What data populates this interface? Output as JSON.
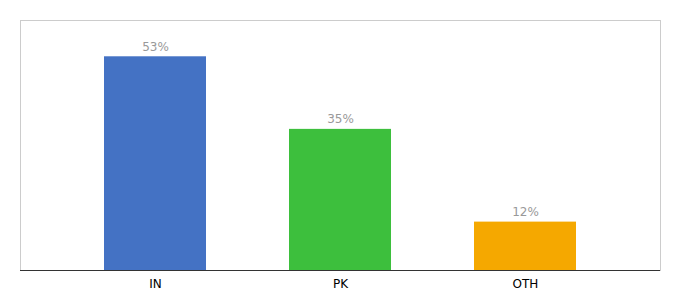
{
  "chart_data": {
    "type": "bar",
    "categories": [
      "IN",
      "PK",
      "OTH"
    ],
    "values": [
      53,
      35,
      12
    ],
    "value_labels": [
      "53%",
      "35%",
      "12%"
    ],
    "colors": [
      "#4472c4",
      "#3dbf3d",
      "#f5a800"
    ],
    "ylim": [
      0,
      62
    ],
    "data_labels": true,
    "tick_labels": "x",
    "grid": false
  }
}
